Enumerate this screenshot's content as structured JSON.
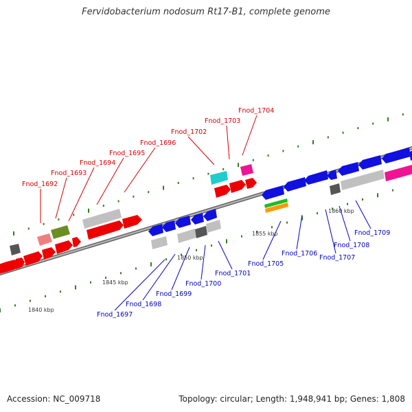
{
  "title": "Fervidobacterium nodosum Rt17-B1, complete genome",
  "accession": "Accession: NC_009718",
  "summary": "Topology: circular; Length: 1,948,941 bp; Genes: 1,808",
  "colors": {
    "forward_label": "#d40000",
    "reverse_label": "#0000c8",
    "backbone": "#8a8a8a",
    "tick": "#2e7d1e"
  },
  "scale": [
    {
      "label": "1840 kbp"
    },
    {
      "label": "1845 kbp"
    },
    {
      "label": "1850 kbp"
    },
    {
      "label": "1855 kbp"
    },
    {
      "label": "1860 kbp"
    }
  ],
  "forward_genes": [
    {
      "label": "Fnod_1692"
    },
    {
      "label": "Fnod_1693"
    },
    {
      "label": "Fnod_1694"
    },
    {
      "label": "Fnod_1695"
    },
    {
      "label": "Fnod_1696"
    },
    {
      "label": "Fnod_1702"
    },
    {
      "label": "Fnod_1703"
    },
    {
      "label": "Fnod_1704"
    }
  ],
  "reverse_genes": [
    {
      "label": "Fnod_1697"
    },
    {
      "label": "Fnod_1698"
    },
    {
      "label": "Fnod_1699"
    },
    {
      "label": "Fnod_1700"
    },
    {
      "label": "Fnod_1701"
    },
    {
      "label": "Fnod_1705"
    },
    {
      "label": "Fnod_1706"
    },
    {
      "label": "Fnod_1707"
    },
    {
      "label": "Fnod_1708"
    },
    {
      "label": "Fnod_1709"
    }
  ]
}
